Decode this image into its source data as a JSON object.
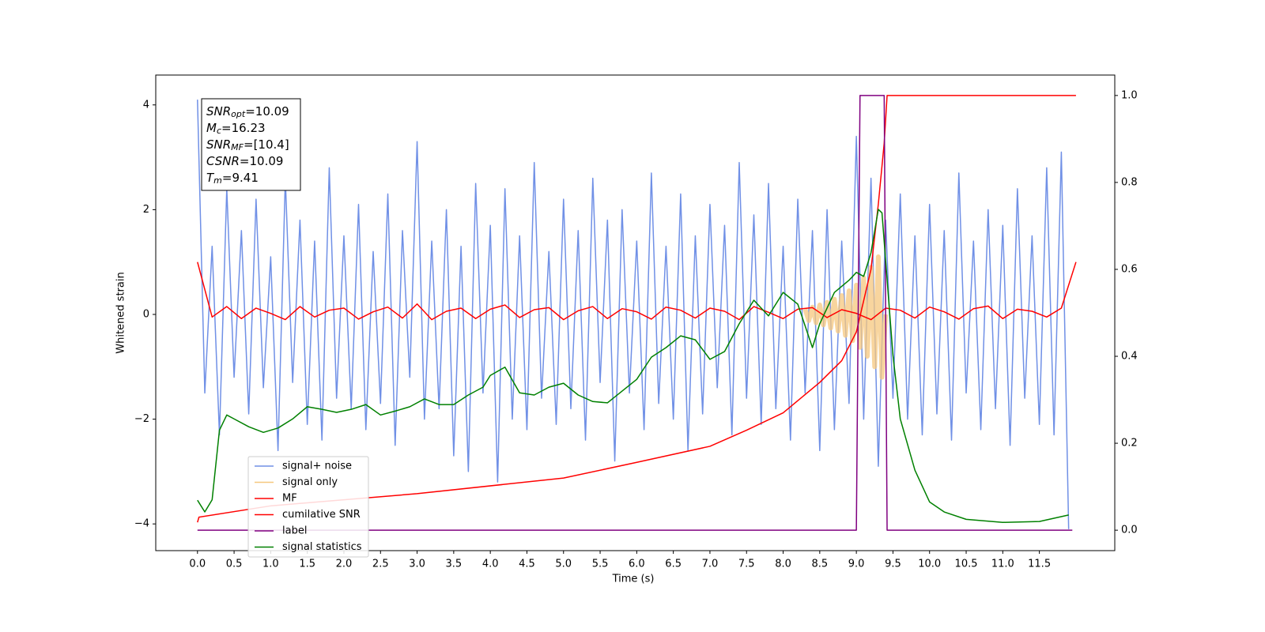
{
  "chart_data": {
    "type": "line",
    "xlabel": "Time (s)",
    "ylabel": "Whitened strain",
    "xlim": [
      -0.57,
      12.53
    ],
    "ylim": [
      -4.51,
      4.57
    ],
    "y2lim": [
      -0.047,
      1.047
    ],
    "xticks": [
      {
        "value": 0,
        "label": "0.0"
      },
      {
        "value": 0.5,
        "label": "0.5"
      },
      {
        "value": 1,
        "label": "1.0"
      },
      {
        "value": 1.5,
        "label": "1.5"
      },
      {
        "value": 2,
        "label": "2.0"
      },
      {
        "value": 2.5,
        "label": "2.5"
      },
      {
        "value": 3,
        "label": "3.0"
      },
      {
        "value": 3.5,
        "label": "3.5"
      },
      {
        "value": 4,
        "label": "4.0"
      },
      {
        "value": 4.5,
        "label": "4.5"
      },
      {
        "value": 5,
        "label": "5.0"
      },
      {
        "value": 5.5,
        "label": "5.5"
      },
      {
        "value": 6,
        "label": "6.0"
      },
      {
        "value": 6.5,
        "label": "6.5"
      },
      {
        "value": 7,
        "label": "7.0"
      },
      {
        "value": 7.5,
        "label": "7.5"
      },
      {
        "value": 8,
        "label": "8.0"
      },
      {
        "value": 8.5,
        "label": "8.5"
      },
      {
        "value": 9,
        "label": "9.0"
      },
      {
        "value": 9.5,
        "label": "9.5"
      },
      {
        "value": 10,
        "label": "10.0"
      },
      {
        "value": 10.5,
        "label": "10.5"
      },
      {
        "value": 11,
        "label": "11.0"
      },
      {
        "value": 11.5,
        "label": "11.5"
      }
    ],
    "yticks": [
      {
        "value": -4,
        "label": "−4"
      },
      {
        "value": -2,
        "label": "−2"
      },
      0,
      2,
      4
    ],
    "y2ticks": [
      {
        "value": 0,
        "label": "0.0"
      },
      {
        "value": 0.2,
        "label": "0.2"
      },
      {
        "value": 0.4,
        "label": "0.4"
      },
      {
        "value": 0.6,
        "label": "0.6"
      },
      {
        "value": 0.8,
        "label": "0.8"
      },
      {
        "value": 1,
        "label": "1.0"
      }
    ],
    "legend_loc": "lower left",
    "annotation": [
      {
        "main": "SNR",
        "sub": "opt",
        "rest": "=10.09"
      },
      {
        "main": "M",
        "sub": "c",
        "rest": "=16.23"
      },
      {
        "main": "SNR",
        "sub": "MF",
        "rest": "=[10.4]"
      },
      {
        "main": "CSNR",
        "sub": null,
        "rest": "=10.09"
      },
      {
        "main": "T",
        "sub": "m",
        "rest": "=9.41"
      }
    ],
    "series": [
      {
        "name": "signal+ noise",
        "color": "#7090e6",
        "axis": "y",
        "width": 1.5,
        "x": [
          0,
          0.1,
          0.2,
          0.3,
          0.4,
          0.5,
          0.6,
          0.7,
          0.8,
          0.9,
          1,
          1.1,
          1.2,
          1.3,
          1.4,
          1.5,
          1.6,
          1.7,
          1.8,
          1.9,
          2,
          2.1,
          2.2,
          2.3,
          2.4,
          2.5,
          2.6,
          2.7,
          2.8,
          2.9,
          3,
          3.1,
          3.2,
          3.3,
          3.4,
          3.5,
          3.6,
          3.7,
          3.8,
          3.9,
          4,
          4.1,
          4.2,
          4.3,
          4.4,
          4.5,
          4.6,
          4.7,
          4.8,
          4.9,
          5,
          5.1,
          5.2,
          5.3,
          5.4,
          5.5,
          5.6,
          5.7,
          5.8,
          5.9,
          6,
          6.1,
          6.2,
          6.3,
          6.4,
          6.5,
          6.6,
          6.7,
          6.8,
          6.9,
          7,
          7.1,
          7.2,
          7.3,
          7.4,
          7.5,
          7.6,
          7.7,
          7.8,
          7.9,
          8,
          8.1,
          8.2,
          8.3,
          8.4,
          8.5,
          8.6,
          8.7,
          8.8,
          8.9,
          9,
          9.1,
          9.2,
          9.3,
          9.4,
          9.5,
          9.6,
          9.7,
          9.8,
          9.9,
          10,
          10.1,
          10.2,
          10.3,
          10.4,
          10.5,
          10.6,
          10.7,
          10.8,
          10.9,
          11,
          11.1,
          11.2,
          11.3,
          11.4,
          11.5,
          11.6,
          11.7,
          11.8,
          11.9
        ],
        "values": [
          4.1,
          -1.5,
          1.3,
          -2.3,
          2.4,
          -1.2,
          1.6,
          -1.9,
          2.2,
          -1.4,
          1.1,
          -2.6,
          2.6,
          -1.3,
          1.8,
          -2.1,
          1.4,
          -2.4,
          2.8,
          -1.6,
          1.5,
          -1.8,
          2.1,
          -2.2,
          1.2,
          -1.7,
          2.3,
          -2.5,
          1.6,
          -1.2,
          3.3,
          -2.0,
          1.4,
          -1.8,
          2.0,
          -2.7,
          1.3,
          -3.0,
          2.5,
          -1.5,
          1.7,
          -3.2,
          2.4,
          -2.0,
          1.5,
          -2.2,
          2.9,
          -1.6,
          1.2,
          -2.1,
          2.2,
          -1.8,
          1.6,
          -2.4,
          2.6,
          -1.3,
          1.8,
          -2.8,
          2.0,
          -1.5,
          1.4,
          -2.2,
          2.7,
          -1.7,
          1.3,
          -2.0,
          2.3,
          -2.6,
          1.5,
          -1.9,
          2.1,
          -1.4,
          1.7,
          -2.3,
          2.9,
          -1.6,
          1.9,
          -2.1,
          2.5,
          -1.8,
          1.3,
          -2.4,
          2.2,
          -1.5,
          1.6,
          -2.6,
          2.0,
          -2.2,
          1.4,
          -1.7,
          3.4,
          -2.0,
          2.6,
          -2.9,
          1.8,
          -1.6,
          2.3,
          -2.0,
          1.5,
          -2.3,
          2.1,
          -1.9,
          1.6,
          -2.4,
          2.7,
          -1.5,
          1.4,
          -2.2,
          2.0,
          -1.8,
          1.7,
          -2.5,
          2.4,
          -1.6,
          1.5,
          -2.1,
          2.8,
          -2.3,
          3.1,
          -4.1
        ]
      },
      {
        "name": "signal only",
        "color": "#f5c77e",
        "axis": "y",
        "width": 6,
        "x": [
          8.3,
          8.35,
          8.4,
          8.45,
          8.5,
          8.55,
          8.6,
          8.65,
          8.7,
          8.75,
          8.8,
          8.85,
          8.9,
          8.95,
          9,
          9.05,
          9.1,
          9.15,
          9.2,
          9.25,
          9.3,
          9.35,
          9.4
        ],
        "values": [
          0.1,
          -0.12,
          0.14,
          -0.16,
          0.18,
          -0.2,
          0.23,
          -0.26,
          0.29,
          -0.32,
          0.36,
          -0.4,
          0.45,
          -0.5,
          0.56,
          -0.63,
          0.7,
          -0.8,
          0.9,
          -1.0,
          1.1,
          -1.2,
          0
        ]
      },
      {
        "name": "MF",
        "color": "#ff0000",
        "axis": "y",
        "width": 1.5,
        "x": [
          0,
          0.2,
          0.4,
          0.6,
          0.8,
          1,
          1.2,
          1.4,
          1.6,
          1.8,
          2,
          2.2,
          2.4,
          2.6,
          2.8,
          3,
          3.2,
          3.4,
          3.6,
          3.8,
          4,
          4.2,
          4.4,
          4.6,
          4.8,
          5,
          5.2,
          5.4,
          5.6,
          5.8,
          6,
          6.2,
          6.4,
          6.6,
          6.8,
          7,
          7.2,
          7.4,
          7.6,
          7.8,
          8,
          8.2,
          8.4,
          8.6,
          8.8,
          9,
          9.2,
          9.4,
          9.6,
          9.8,
          10,
          10.2,
          10.4,
          10.6,
          10.8,
          11,
          11.2,
          11.4,
          11.6,
          11.8,
          12
        ],
        "values": [
          1.0,
          -0.05,
          0.15,
          -0.08,
          0.12,
          0.02,
          -0.1,
          0.15,
          -0.05,
          0.08,
          0.12,
          -0.09,
          0.05,
          0.14,
          -0.07,
          0.2,
          -0.1,
          0.06,
          0.12,
          -0.08,
          0.1,
          0.18,
          -0.06,
          0.09,
          0.13,
          -0.1,
          0.07,
          0.15,
          -0.08,
          0.11,
          0.05,
          -0.09,
          0.14,
          0.08,
          -0.07,
          0.12,
          0.06,
          -0.1,
          0.15,
          0.04,
          -0.08,
          0.1,
          0.13,
          -0.06,
          0.09,
          0.02,
          -0.1,
          0.12,
          0.08,
          -0.07,
          0.14,
          0.05,
          -0.09,
          0.11,
          0.16,
          -0.08,
          0.1,
          0.06,
          -0.05,
          0.12,
          1.0
        ]
      },
      {
        "name": "cumilative SNR",
        "color": "#ff0000",
        "axis": "y2",
        "width": 1.5,
        "x": [
          0,
          0.02,
          1,
          3,
          5,
          6,
          7,
          7.5,
          8,
          8.5,
          8.8,
          9,
          9.2,
          9.3,
          9.38,
          9.42,
          12
        ],
        "values": [
          0.018,
          0.03,
          0.056,
          0.084,
          0.12,
          0.156,
          0.193,
          0.23,
          0.27,
          0.34,
          0.39,
          0.456,
          0.6,
          0.75,
          0.89,
          1.0,
          1.0
        ]
      },
      {
        "name": "label",
        "color": "#800080",
        "axis": "y2",
        "width": 1.5,
        "x": [
          0,
          9.0,
          9.05,
          9.38,
          9.42,
          11.95
        ],
        "values": [
          0,
          0,
          1,
          1,
          0,
          0
        ]
      },
      {
        "name": "signal statistics",
        "color": "#008000",
        "axis": "y2",
        "width": 1.5,
        "x": [
          0,
          0.1,
          0.2,
          0.3,
          0.4,
          0.5,
          0.7,
          0.9,
          1.1,
          1.3,
          1.5,
          1.7,
          1.9,
          2.1,
          2.3,
          2.5,
          2.7,
          2.9,
          3.1,
          3.3,
          3.5,
          3.7,
          3.9,
          4.0,
          4.2,
          4.4,
          4.6,
          4.8,
          5.0,
          5.2,
          5.4,
          5.6,
          5.8,
          6.0,
          6.2,
          6.4,
          6.6,
          6.8,
          7.0,
          7.2,
          7.4,
          7.6,
          7.8,
          8.0,
          8.2,
          8.4,
          8.5,
          8.7,
          8.9,
          9.0,
          9.1,
          9.2,
          9.3,
          9.35,
          9.4,
          9.5,
          9.6,
          9.8,
          10.0,
          10.2,
          10.5,
          11.0,
          11.5,
          11.9
        ],
        "values": [
          0.069,
          0.042,
          0.07,
          0.23,
          0.265,
          0.256,
          0.238,
          0.225,
          0.235,
          0.256,
          0.284,
          0.278,
          0.271,
          0.278,
          0.289,
          0.265,
          0.274,
          0.284,
          0.302,
          0.289,
          0.289,
          0.311,
          0.329,
          0.356,
          0.375,
          0.316,
          0.311,
          0.329,
          0.338,
          0.311,
          0.296,
          0.293,
          0.32,
          0.347,
          0.398,
          0.42,
          0.447,
          0.438,
          0.393,
          0.411,
          0.475,
          0.529,
          0.493,
          0.547,
          0.52,
          0.42,
          0.475,
          0.547,
          0.575,
          0.593,
          0.584,
          0.638,
          0.738,
          0.73,
          0.62,
          0.402,
          0.256,
          0.138,
          0.065,
          0.042,
          0.025,
          0.018,
          0.02,
          0.035
        ]
      }
    ]
  }
}
